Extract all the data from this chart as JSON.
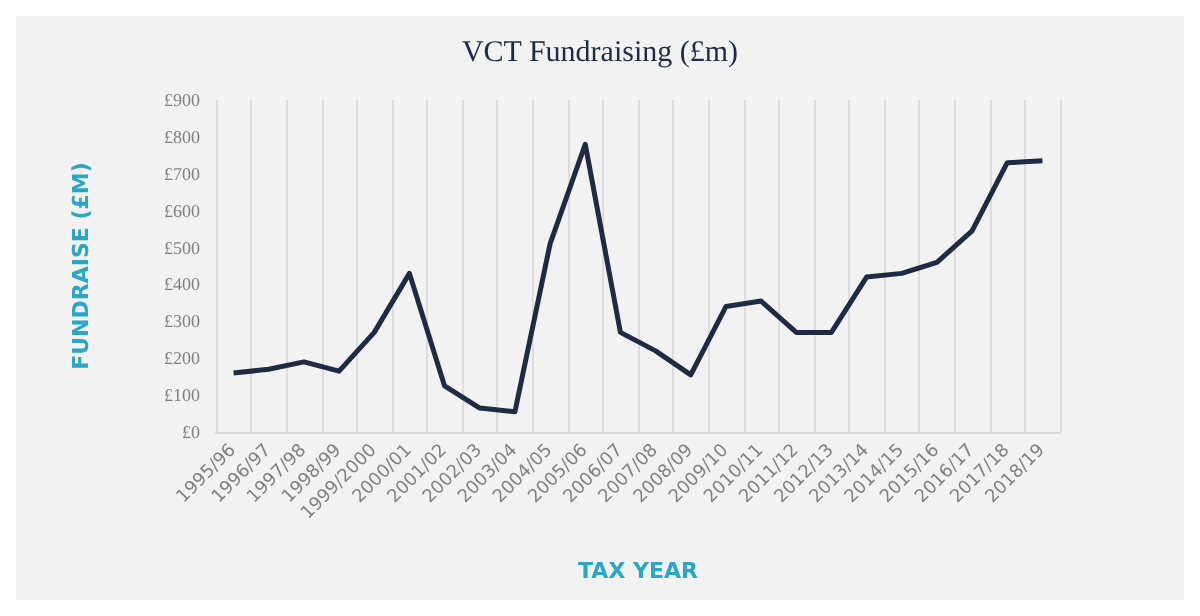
{
  "chart_data": {
    "type": "line",
    "title": "VCT Fundraising (£m)",
    "xlabel": "TAX YEAR",
    "ylabel": "FUNDRAISE (£M)",
    "categories": [
      "1995/96",
      "1996/97",
      "1997/98",
      "1998/99",
      "1999/2000",
      "2000/01",
      "2001/02",
      "2002/03",
      "2003/04",
      "2004/05",
      "2005/06",
      "2006/07",
      "2007/08",
      "2008/09",
      "2009/10",
      "2010/11",
      "2011/12",
      "2012/13",
      "2013/14",
      "2014/15",
      "2015/16",
      "2016/17",
      "2017/18",
      "2018/19"
    ],
    "series": [
      {
        "color": "#1f2a44",
        "values": [
          160,
          170,
          190,
          165,
          270,
          430,
          125,
          65,
          55,
          510,
          780,
          270,
          220,
          155,
          340,
          355,
          270,
          270,
          420,
          430,
          460,
          545,
          730,
          735
        ]
      }
    ],
    "ylim": [
      0,
      900
    ],
    "yticks": [
      {
        "value": 0,
        "label": "£0"
      },
      {
        "value": 100,
        "label": "£100"
      },
      {
        "value": 200,
        "label": "£200"
      },
      {
        "value": 300,
        "label": "£300"
      },
      {
        "value": 400,
        "label": "£400"
      },
      {
        "value": 500,
        "label": "£500"
      },
      {
        "value": 600,
        "label": "£600"
      },
      {
        "value": 700,
        "label": "£700"
      },
      {
        "value": 800,
        "label": "£800"
      },
      {
        "value": 900,
        "label": "£900"
      }
    ],
    "grid": "x",
    "marker": "none",
    "line_style": "solid"
  }
}
